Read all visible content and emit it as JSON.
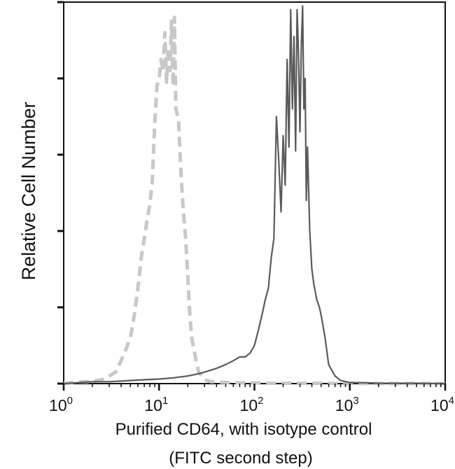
{
  "chart_data": {
    "type": "line",
    "title": "",
    "xlabel_line1": "Purified CD64, with isotype control",
    "xlabel_line2": "(FITC second step)",
    "ylabel": "Relative Cell Number",
    "x_scale": "log",
    "xlim": [
      1,
      10000
    ],
    "ylim": [
      0,
      100
    ],
    "grid": false,
    "x_ticks": [
      {
        "value": 1,
        "base": "10",
        "exp": "0"
      },
      {
        "value": 10,
        "base": "10",
        "exp": "1"
      },
      {
        "value": 100,
        "base": "10",
        "exp": "2"
      },
      {
        "value": 1000,
        "base": "10",
        "exp": "3"
      },
      {
        "value": 10000,
        "base": "10",
        "exp": "4"
      }
    ],
    "y_ticks": [
      0,
      20,
      40,
      60,
      80,
      100
    ],
    "colors": {
      "isotype": "#c8c8c8",
      "cd64": "#5a5a5a",
      "axis": "#111111"
    },
    "series": [
      {
        "key": "isotype",
        "style": "dashed",
        "x": [
          1,
          1.5,
          2,
          2.5,
          3,
          3.5,
          4,
          4.5,
          5,
          5.5,
          6,
          6.5,
          7,
          7.5,
          8,
          8.5,
          9,
          9.5,
          10,
          10.5,
          11,
          11.5,
          12,
          12.5,
          13,
          13.5,
          14,
          14.5,
          15,
          16,
          17,
          18,
          19,
          20,
          21,
          22,
          24,
          26,
          28,
          30,
          35,
          40,
          50,
          60,
          80,
          100,
          150,
          200,
          300,
          500,
          1000,
          10000
        ],
        "y": [
          0,
          0.5,
          0.5,
          1,
          2,
          3,
          6,
          9,
          12,
          18,
          25,
          33,
          38,
          43,
          47,
          53,
          68,
          78,
          80,
          85,
          82,
          92,
          79,
          88,
          82,
          95,
          78,
          96,
          72,
          69,
          55,
          45,
          38,
          28,
          18,
          12,
          7,
          3,
          2,
          1,
          0.5,
          0.5,
          0.3,
          0.2,
          0.2,
          0.2,
          0.1,
          0.1,
          0.1,
          0.1,
          0,
          0
        ]
      },
      {
        "key": "cd64",
        "style": "solid",
        "x": [
          1,
          2,
          3,
          5,
          7,
          10,
          14,
          20,
          25,
          30,
          40,
          50,
          60,
          70,
          80,
          90,
          100,
          110,
          120,
          130,
          140,
          150,
          160,
          170,
          180,
          190,
          200,
          210,
          220,
          230,
          240,
          250,
          260,
          270,
          280,
          290,
          300,
          310,
          320,
          330,
          340,
          350,
          360,
          380,
          400,
          420,
          450,
          480,
          500,
          550,
          600,
          700,
          800,
          1000,
          1500,
          2000,
          5000,
          10000
        ],
        "y": [
          0,
          0.5,
          0.5,
          0.8,
          1,
          1.2,
          1.5,
          2,
          2.5,
          3,
          4,
          5,
          6,
          7,
          7,
          8,
          10,
          14,
          18,
          22,
          25,
          33,
          38,
          70,
          58,
          45,
          65,
          52,
          85,
          62,
          98,
          72,
          91,
          61,
          98,
          86,
          66,
          88,
          99,
          72,
          80,
          48,
          62,
          40,
          30,
          26,
          22,
          20,
          18,
          12,
          5,
          2,
          0.8,
          0.3,
          0.2,
          0.1,
          0.1,
          0
        ]
      }
    ]
  }
}
